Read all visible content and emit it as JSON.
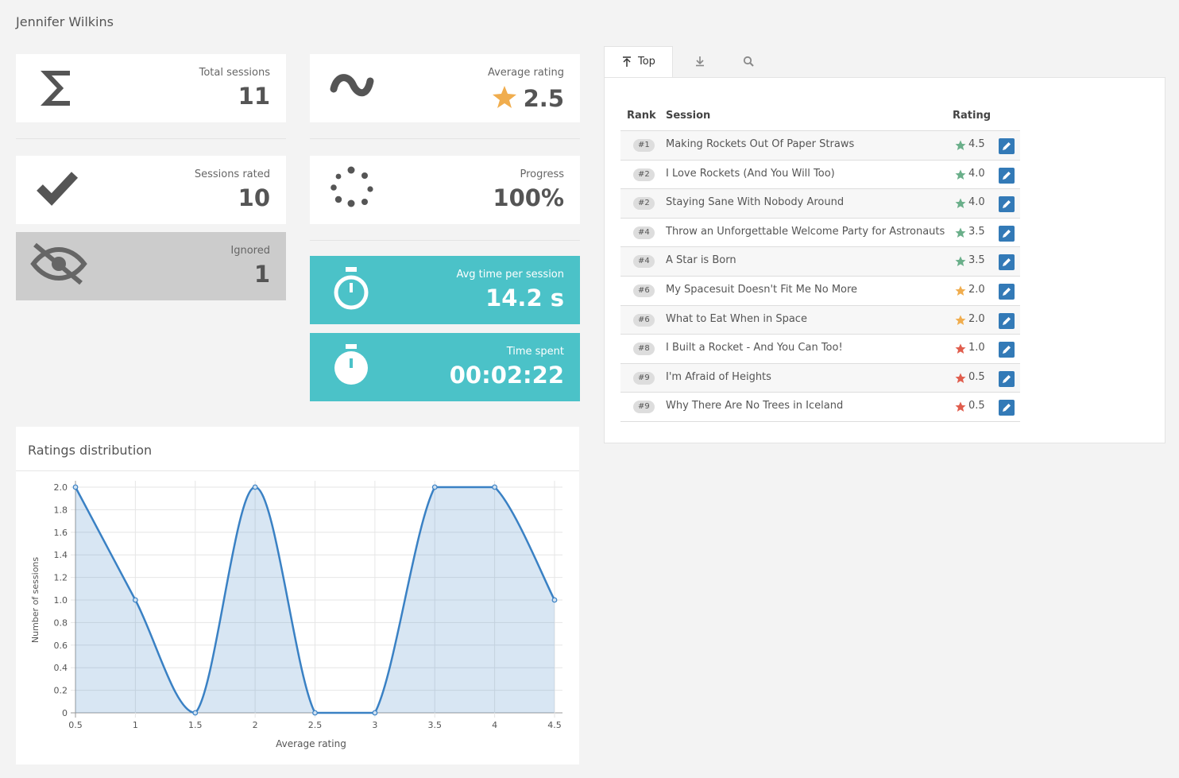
{
  "header": {
    "title": "Jennifer Wilkins"
  },
  "stats": [
    {
      "label": "Total sessions",
      "value": "11"
    },
    {
      "label": "Average rating",
      "value": "2.5"
    },
    {
      "label": "Sessions rated",
      "value": "10"
    },
    {
      "label": "Progress",
      "value": "100%"
    },
    {
      "label": "Ignored",
      "value": "1"
    },
    {
      "label": "Avg time per session",
      "value": "14.2 s"
    },
    {
      "label": "Time spent",
      "value": "00:02:22"
    }
  ],
  "tabs": [
    "Top"
  ],
  "table": {
    "columns": [
      "Rank",
      "Session",
      "Rating"
    ],
    "rows": [
      [
        "#1",
        "Making Rockets Out Of Paper Straws",
        "4.5"
      ],
      [
        "#2",
        "I Love Rockets (And You Will Too)",
        "4.0"
      ],
      [
        "#2",
        "Staying Sane With Nobody Around",
        "4.0"
      ],
      [
        "#4",
        "Throw an Unforgettable Welcome Party for Astronauts",
        "3.5"
      ],
      [
        "#4",
        "A Star is Born",
        "3.5"
      ],
      [
        "#6",
        "My Spacesuit Doesn't Fit Me No More",
        "2.0"
      ],
      [
        "#6",
        "What to Eat When in Space",
        "2.0"
      ],
      [
        "#8",
        "I Built a Rocket - And You Can Too!",
        "1.0"
      ],
      [
        "#9",
        "I'm Afraid of Heights",
        "0.5"
      ],
      [
        "#9",
        "Why There Are No Trees in Iceland",
        "0.5"
      ]
    ]
  },
  "chart_data": {
    "type": "area",
    "title": "Ratings distribution",
    "x_label": "Average rating",
    "y_label": "Number of sessions",
    "x": [
      0.5,
      1,
      1.5,
      2,
      2.5,
      3,
      3.5,
      4,
      4.5
    ],
    "values": [
      2,
      1,
      0,
      2,
      0,
      0,
      2,
      2,
      1
    ],
    "color": "#3a81c4",
    "xlim": [
      0.5,
      4.5
    ],
    "ylim": [
      0,
      2
    ],
    "xticks": [
      0.5,
      1,
      1.5,
      2,
      2.5,
      3,
      3.5,
      4,
      4.5
    ],
    "yticks": [
      0,
      0.2,
      0.4,
      0.6,
      0.8,
      {
        "value": 1,
        "label": "1.0"
      },
      1.2,
      1.4,
      1.6,
      1.8,
      {
        "value": 2,
        "label": "2.0"
      }
    ],
    "grid": true
  }
}
